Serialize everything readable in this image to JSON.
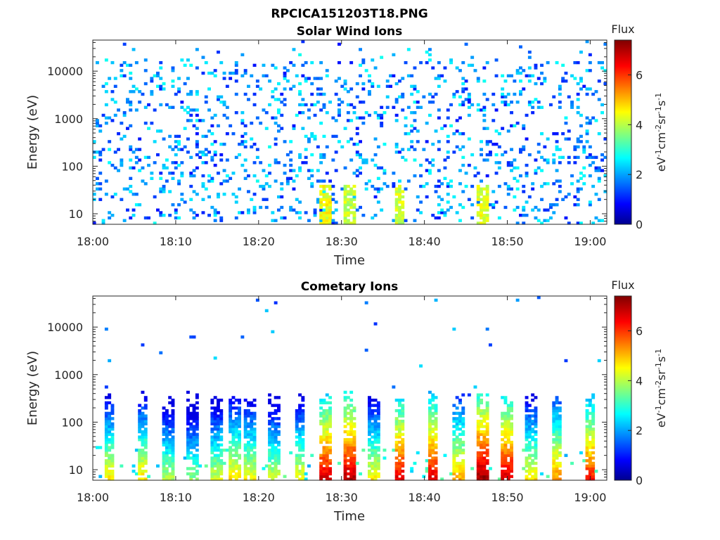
{
  "figure_title": "RPCICA151203T18.PNG",
  "chart_data": [
    {
      "type": "heatmap",
      "title": "Solar Wind Ions",
      "xlabel": "Time",
      "ylabel": "Energy (eV)",
      "x_ticks": [
        "18:00",
        "18:10",
        "18:20",
        "18:30",
        "18:40",
        "18:50",
        "19:00"
      ],
      "x_range": [
        "18:00",
        "19:02"
      ],
      "y_scale": "log",
      "y_ticks": [
        10,
        100,
        1000,
        10000
      ],
      "y_range": [
        6,
        45000
      ],
      "colorbar": {
        "label_top": "Flux",
        "unit_label": "eV-1cm-2sr-1s-1",
        "unit_parts": [
          {
            "t": "eV",
            "sup": "-1"
          },
          {
            "t": "cm",
            "sup": "-2"
          },
          {
            "t": "sr",
            "sup": "-1"
          },
          {
            "t": "s",
            "sup": "-1"
          }
        ],
        "ticks": [
          0,
          2,
          4,
          6
        ],
        "range": [
          0,
          7.4
        ],
        "colormap": "jet"
      },
      "pattern": "scattered low flux (about 1-3) across 6-30000 eV at all times; bursts near 4-5 below 40 eV around 18:28, 18:31, 18:37, 18:47",
      "bursts": [
        {
          "time": "18:28",
          "flux": 4.8
        },
        {
          "time": "18:31",
          "flux": 4.5
        },
        {
          "time": "18:37",
          "flux": 4.6
        },
        {
          "time": "18:47",
          "flux": 4.7
        }
      ]
    },
    {
      "type": "heatmap",
      "title": "Cometary Ions",
      "xlabel": "Time",
      "ylabel": "Energy (eV)",
      "x_ticks": [
        "18:00",
        "18:10",
        "18:20",
        "18:30",
        "18:40",
        "18:50",
        "19:00"
      ],
      "x_range": [
        "18:00",
        "19:02"
      ],
      "y_scale": "log",
      "y_ticks": [
        10,
        100,
        1000,
        10000
      ],
      "y_range": [
        6,
        45000
      ],
      "colorbar": {
        "label_top": "Flux",
        "unit_label": "eV-1cm-2sr-1s-1",
        "unit_parts": [
          {
            "t": "eV",
            "sup": "-1"
          },
          {
            "t": "cm",
            "sup": "-2"
          },
          {
            "t": "sr",
            "sup": "-1"
          },
          {
            "t": "s",
            "sup": "-1"
          }
        ],
        "ticks": [
          0,
          2,
          4,
          6
        ],
        "range": [
          0,
          7.4
        ],
        "colormap": "jet"
      },
      "pattern": "periodic vertical bursts from 6 to a few hundred eV, strongest at lowest energies; sparse points up to about 10000 eV",
      "bursts": [
        {
          "time": "18:02",
          "flux": 4.5
        },
        {
          "time": "18:06",
          "flux": 4.6
        },
        {
          "time": "18:09",
          "flux": 3.8
        },
        {
          "time": "18:12",
          "flux": 3.5
        },
        {
          "time": "18:15",
          "flux": 4.0
        },
        {
          "time": "18:17",
          "flux": 4.6
        },
        {
          "time": "18:19",
          "flux": 4.3
        },
        {
          "time": "18:22",
          "flux": 4.0
        },
        {
          "time": "18:25",
          "flux": 4.3
        },
        {
          "time": "18:28",
          "flux": 6.5
        },
        {
          "time": "18:31",
          "flux": 6.8
        },
        {
          "time": "18:34",
          "flux": 4.4
        },
        {
          "time": "18:37",
          "flux": 6.4
        },
        {
          "time": "18:41",
          "flux": 6.4
        },
        {
          "time": "18:44",
          "flux": 5.0
        },
        {
          "time": "18:47",
          "flux": 7.0
        },
        {
          "time": "18:50",
          "flux": 6.6
        },
        {
          "time": "18:53",
          "flux": 4.5
        },
        {
          "time": "18:56",
          "flux": 5.2
        },
        {
          "time": "19:00",
          "flux": 6.0
        }
      ]
    }
  ]
}
